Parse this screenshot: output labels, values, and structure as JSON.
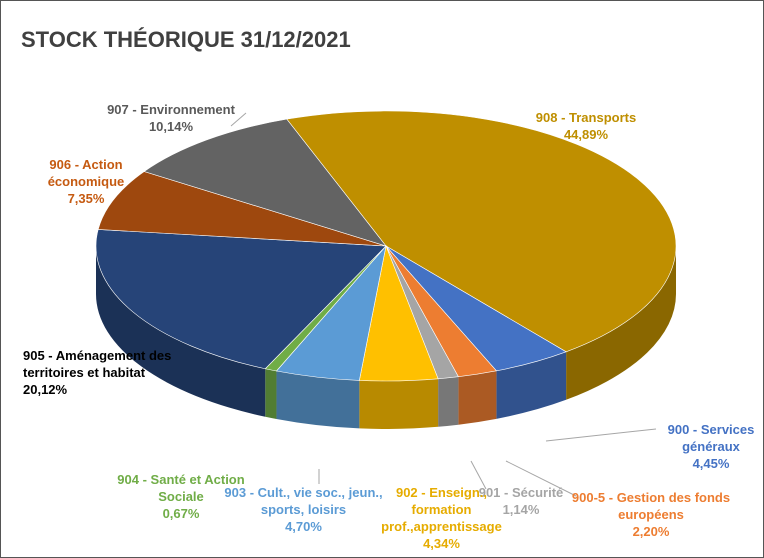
{
  "chart_data": {
    "type": "pie3d",
    "title": "STOCK THÉORIQUE 31/12/2021",
    "series": [
      {
        "name": "908 - Transports",
        "value": 44.89,
        "value_label": "44,89%",
        "color": "#bf8f00",
        "label_color": "#bf8f00"
      },
      {
        "name": "900 - Services généraux",
        "value": 4.45,
        "value_label": "4,45%",
        "color": "#4472c4",
        "label_color": "#4472c4"
      },
      {
        "name": "900-5 - Gestion des fonds européens",
        "value": 2.2,
        "value_label": "2,20%",
        "color": "#ed7d31",
        "label_color": "#ed7d31"
      },
      {
        "name": "901 - Sécurité",
        "value": 1.14,
        "value_label": "1,14%",
        "color": "#a5a5a5",
        "label_color": "#a5a5a5"
      },
      {
        "name": "902 - Enseign., formation prof.,apprentissage",
        "value": 4.34,
        "value_label": "4,34%",
        "color": "#ffc000",
        "label_color": "#e6ac00"
      },
      {
        "name": "903 - Cult., vie soc., jeun., sports, loisirs",
        "value": 4.7,
        "value_label": "4,70%",
        "color": "#5b9bd5",
        "label_color": "#5b9bd5"
      },
      {
        "name": "904 - Santé et Action Sociale",
        "value": 0.67,
        "value_label": "0,67%",
        "color": "#70ad47",
        "label_color": "#70ad47"
      },
      {
        "name": "905 - Aménagement des territoires et habitat",
        "value": 20.12,
        "value_label": "20,12%",
        "color": "#264478",
        "label_color": "#000000"
      },
      {
        "name": "906 - Action économique",
        "value": 7.35,
        "value_label": "7,35%",
        "color": "#9e480e",
        "label_color": "#c55a11"
      },
      {
        "name": "907 - Environnement",
        "value": 10.14,
        "value_label": "10,14%",
        "color": "#636363",
        "label_color": "#595959"
      }
    ]
  }
}
